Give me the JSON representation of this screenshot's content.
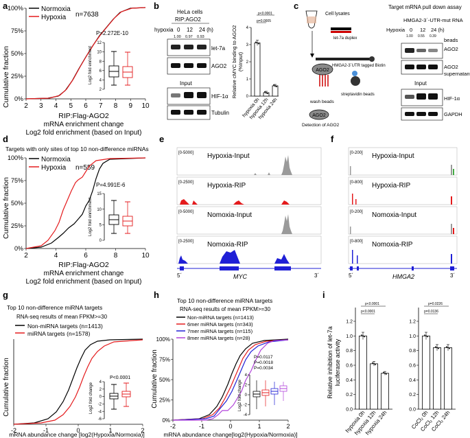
{
  "panel_labels": {
    "a": "a",
    "b": "b",
    "c": "c",
    "d": "d",
    "e": "e",
    "f": "f",
    "g": "g",
    "h": "h",
    "i": "i"
  },
  "colors": {
    "black": "#000000",
    "red": "#e41a1c",
    "blue": "#1f1fd6",
    "purple": "#b041d9",
    "gray": "#9a9a9a",
    "lightblue": "#6a8cff"
  },
  "panel_a": {
    "legend": [
      "Normoxia",
      "Hypoxia"
    ],
    "n": "n=7638",
    "pvalue": "P=2.272E-10",
    "ylabel": "Cumulative fraction",
    "xlabel1": "RIP:Flag-AGO2",
    "xlabel2": "mRNA enrichment change",
    "xlabel3": "Log2 fold enrichment (based on Input)",
    "xticks": [
      "2",
      "3",
      "4",
      "5",
      "6",
      "7",
      "8",
      "9",
      "10"
    ],
    "yticks": [
      "0%",
      "25%",
      "50%",
      "75%",
      "100%"
    ],
    "inset_ylabel": "Log2 fold enrichment",
    "inset_yticks": [
      "12",
      "10",
      "8",
      "6",
      "4",
      "2"
    ]
  },
  "panel_b": {
    "cell": "HeLa cells",
    "rip": "RIP:AGO2",
    "hypoxia_label": "hypoxia",
    "times": [
      "0",
      "12",
      "24 (h)"
    ],
    "ratios": [
      "1.00",
      "0.97",
      "0.93"
    ],
    "bands_top": [
      "let-7a",
      "AGO2"
    ],
    "input_label": "Input",
    "bands_bottom": [
      "HIF-1α",
      "Tubulin"
    ],
    "bar_ylabel1": "Relative cMYC binding to AGO2",
    "bar_ylabel2": "(%Input)",
    "bar_yticks": [
      "0",
      "1",
      "2",
      "3",
      "4"
    ],
    "bar_categories": [
      "hypoxia 0h",
      "hypoxia 12h",
      "hypoxia 24h"
    ],
    "pvals": [
      "p<0.0001",
      "p=0.0005"
    ]
  },
  "panel_c": {
    "steps": [
      "Cell lysates",
      "let-7a duplex",
      "HMGA2-3´UTR tagged Biotin",
      "streptavidin beads",
      "wash beads",
      "Detection of AGO2"
    ],
    "ago2": "AGO2",
    "blot_title1": "Target mRNA pull down assay",
    "blot_title2": "HMGA2-3´-UTR-mut RNA",
    "hypoxia_label": "Hypoxia",
    "times": [
      "0",
      "12",
      "24 (h)"
    ],
    "ratios": [
      "1.00",
      "0.55",
      "0.39"
    ],
    "beads": "beads",
    "bands": [
      "AGO2",
      "AGO2",
      "HIF-1α",
      "GAPDH"
    ],
    "supernatant": "supernatant",
    "input_label": "Input"
  },
  "panel_d": {
    "title": "Targets with only sites of top 10 non-difference miRNAs",
    "legend": [
      "Normoxia",
      "Hypoxia"
    ],
    "n": "n=559",
    "pvalue": "P=4.991E-6",
    "ylabel": "Cumulative fraction",
    "xlabel1": "RIP:Flag-AGO2",
    "xlabel2": "mRNA enrichment change",
    "xlabel3": "Log2 fold enrichment (based on Input)",
    "xticks": [
      "2",
      "4",
      "6",
      "8",
      "10"
    ],
    "yticks": [
      "0%",
      "25%",
      "50%",
      "75%",
      "100%"
    ],
    "inset_ylabel": "Log2 fold enrichment",
    "inset_yticks": [
      "15",
      "10",
      "5",
      "0"
    ]
  },
  "panel_e": {
    "tracks": [
      {
        "label": "Hypoxia-Input",
        "range": "[0-5000]"
      },
      {
        "label": "Hypoxia-RIP",
        "range": "[0-2500]"
      },
      {
        "label": "Nomoxia-Input",
        "range": "[0-5000]"
      },
      {
        "label": "Nomoxia-RIP",
        "range": "[0-2500]"
      }
    ],
    "gene": "MYC",
    "five": "5´",
    "three": "3´"
  },
  "panel_f": {
    "tracks": [
      {
        "label": "Hypoxia-Input",
        "range": "[0-200]"
      },
      {
        "label": "Hypoxia-RIP",
        "range": "[0-800]"
      },
      {
        "label": "Nomoxia-Input",
        "range": "[0-200]"
      },
      {
        "label": "Nomoxia-RIP",
        "range": "[0-800]"
      }
    ],
    "gene": "HMGA2",
    "five": "5´",
    "three": "3´"
  },
  "panel_g": {
    "title": "Top 10 non-difference miRNA targets",
    "subtitle": "RNA-seq results of mean FPKM>=30",
    "legend": [
      "Non-miRNA targets (n=1413)",
      "miRNA targets (n=1578)"
    ],
    "pvalue": "P<0.0001",
    "ylabel": "Cumulative fraction",
    "xlabel": "mRNA abundance change [log2(Hypoxia/Normoxia)]",
    "xticks": [
      "-2",
      "-1",
      "0",
      "1",
      "2"
    ],
    "inset_ylabel": "Log2 fold change",
    "inset_yticks": [
      "4",
      "2",
      "0",
      "-2",
      "-4",
      "-6"
    ]
  },
  "panel_h": {
    "title": "Top 10 non-difference miRNA targets",
    "subtitle": "RNA-seq results of mean FPKM>=30",
    "legend": [
      "Non-miRNA targets (n=1413)",
      "6mer miRNA targets (n=343)",
      "7mer miRNA targets (n=115)",
      "8mer miRNA targets (n=28)"
    ],
    "pvalues": [
      "P=0.0117",
      "P=0.0018",
      "P=0.0034"
    ],
    "ylabel": "Cumulative fraction",
    "xlabel": "mRNA abundance change[log2(Hypoxia/Normoxia)]",
    "xticks": [
      "-2",
      "-1",
      "0",
      "1",
      "2"
    ],
    "yticks": [
      "0%",
      "25%",
      "50%",
      "75%",
      "100%"
    ],
    "inset_ylabel": "Log2 fold change",
    "inset_yticks": [
      "4",
      "2",
      "0",
      "-2",
      "-4"
    ]
  },
  "panel_i": {
    "ylabel1": "Relative inhibition of let-7a",
    "ylabel2": "luciferase activity",
    "yticks": [
      "0.0",
      "0.2",
      "0.4",
      "0.6",
      "0.8",
      "1.0",
      "1.2"
    ],
    "left_categories": [
      "hypoxia 0h",
      "hypoxia 12h",
      "hypoxia 24h"
    ],
    "right_categories": [
      "CoCl₂ 0h",
      "CoCl₂ 12h",
      "CoCl₂ 24h"
    ],
    "left_pvals": [
      "p<0.0001",
      "p<0.0001"
    ],
    "right_pvals": [
      "p=0.0226",
      "p=0.0136"
    ]
  },
  "chart_data": [
    {
      "id": "b_bar",
      "type": "bar",
      "categories": [
        "hypoxia 0h",
        "hypoxia 12h",
        "hypoxia 24h"
      ],
      "values": [
        3.1,
        0.2,
        0.6
      ],
      "ylabel": "Relative cMYC binding to AGO2 (%Input)",
      "ylim": [
        0,
        4
      ]
    },
    {
      "id": "i_left",
      "type": "bar",
      "categories": [
        "hypoxia 0h",
        "hypoxia 12h",
        "hypoxia 24h"
      ],
      "values": [
        1.0,
        0.62,
        0.49
      ],
      "ylim": [
        0,
        1.2
      ]
    },
    {
      "id": "i_right",
      "type": "bar",
      "categories": [
        "CoCl2 0h",
        "CoCl2 12h",
        "CoCl2 24h"
      ],
      "values": [
        1.0,
        0.84,
        0.84
      ],
      "ylim": [
        0,
        1.2
      ]
    }
  ]
}
